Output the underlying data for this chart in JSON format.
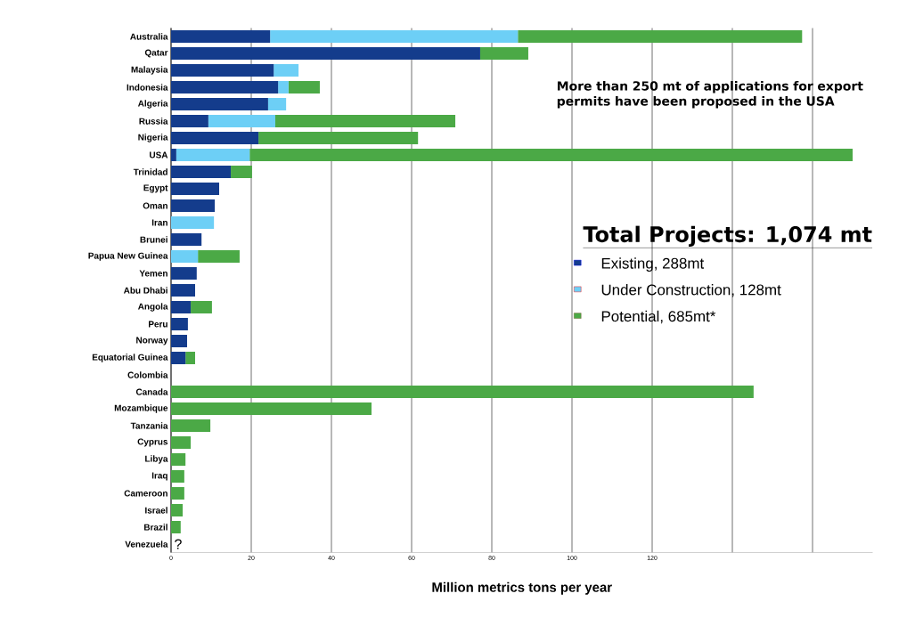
{
  "chart_data": {
    "type": "bar",
    "orientation": "horizontal",
    "stacked": true,
    "xlabel": "Million metrics tons per year",
    "legend_title": "Total Projects: 1,074 mt",
    "categories": [
      "Australia",
      "Qatar",
      "Malaysia",
      "Indonesia",
      "Algeria",
      "Russia",
      "Nigeria",
      "USA",
      "Trinidad",
      "Egypt",
      "Oman",
      "Iran",
      "Brunei",
      "Papua New Guinea",
      "Yemen",
      "Abu Dhabi",
      "Angola",
      "Peru",
      "Norway",
      "Equatorial Guinea",
      "Colombia",
      "Canada",
      "Mozambique",
      "Tanzania",
      "Cyprus",
      "Libya",
      "Iraq",
      "Cameroon",
      "Israel",
      "Brazil",
      "Venezuela"
    ],
    "series": [
      {
        "name": "Existing, 288mt",
        "color": "#143c8c",
        "values": [
          24.7,
          77.1,
          25.6,
          26.7,
          24.2,
          9.3,
          21.8,
          1.3,
          14.9,
          12,
          10.9,
          0,
          7.6,
          0,
          6.4,
          6,
          4.9,
          4.2,
          4,
          3.6,
          0,
          0,
          0,
          0,
          0,
          0,
          0,
          0,
          0,
          0,
          0
        ]
      },
      {
        "name": "Under Construction, 128mt",
        "color": "#6dcff6",
        "values": [
          61.8,
          0,
          6.2,
          2.6,
          4.5,
          16.7,
          0,
          18.3,
          0,
          0,
          0,
          10.7,
          0,
          6.7,
          0,
          0,
          0,
          0,
          0,
          0,
          0,
          0,
          0,
          0,
          0,
          0,
          0,
          0,
          0,
          0,
          0
        ]
      },
      {
        "name": "Potential, 685mt*",
        "color": "#4ba946",
        "values": [
          70.9,
          12,
          0,
          7.8,
          0,
          44.9,
          39.8,
          150.4,
          5.3,
          0,
          0,
          0,
          0,
          10.4,
          0,
          0,
          5.3,
          0,
          0,
          2.4,
          0,
          145.3,
          50,
          9.8,
          4.9,
          3.6,
          3.3,
          3.3,
          2.9,
          2.4,
          0
        ]
      }
    ],
    "xlim": [
      0,
      175
    ],
    "xticks": [
      0,
      20,
      40,
      60,
      80,
      100,
      120,
      {
        "value": 140,
        "label": null
      },
      {
        "value": 160,
        "label": null
      }
    ],
    "grid": "x",
    "legend": "right",
    "annotations": [
      "More than 250 mt of applications for export permits have been proposed in the USA",
      "?"
    ]
  }
}
